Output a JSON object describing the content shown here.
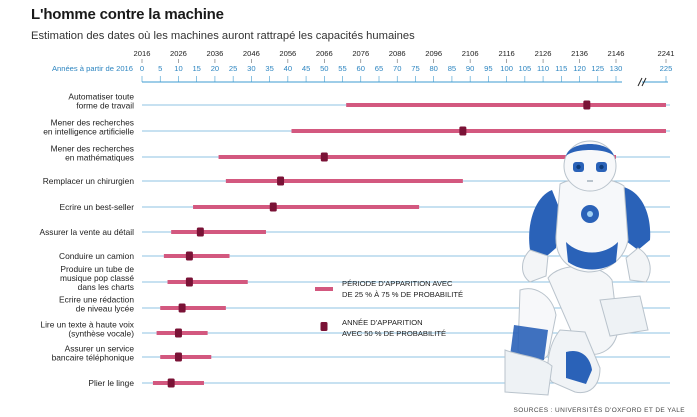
{
  "title": "L'homme contre la machine",
  "subtitle": "Estimation des dates où les machines auront rattrapé les capacités humaines",
  "source": "SOURCES : UNIVERSITÉS D'OXFORD ET DE YALE",
  "colors": {
    "range": "#d3587f",
    "median": "#7a1236",
    "axis": "#3c9bd0",
    "axis_text": "#2e86c1",
    "gridline": "#8fc3e3"
  },
  "chart_data": {
    "type": "range-dot",
    "x_axis_top_label": "",
    "x_axis_years_label": "Années à partir de 2016",
    "years_ticks": [
      2016,
      2026,
      2036,
      2046,
      2056,
      2066,
      2076,
      2086,
      2096,
      2106,
      2116,
      2126,
      2136,
      2146,
      2241
    ],
    "offset_ticks": [
      0,
      5,
      10,
      15,
      20,
      25,
      30,
      35,
      40,
      45,
      50,
      55,
      60,
      65,
      70,
      75,
      80,
      85,
      90,
      95,
      100,
      105,
      110,
      115,
      120,
      125,
      130,
      225
    ],
    "axis_break_between": [
      130,
      225
    ],
    "tasks": [
      {
        "label": "Automatiser toute forme de travail",
        "lines": [
          "Automatiser toute",
          "forme de travail"
        ],
        "p25": 56,
        "p75": 225,
        "p50": 122
      },
      {
        "label": "Mener des recherches en intelligence artificielle",
        "lines": [
          "Mener des recherches",
          "en intelligence artificielle"
        ],
        "p25": 41,
        "p75": 225,
        "p50": 88
      },
      {
        "label": "Mener des recherches en mathématiques",
        "lines": [
          "Mener des recherches",
          "en mathématiques"
        ],
        "p25": 21,
        "p75": 130,
        "p50": 50
      },
      {
        "label": "Remplacer un chirurgien",
        "lines": [
          "Remplacer un chirurgien"
        ],
        "p25": 23,
        "p75": 88,
        "p50": 38
      },
      {
        "label": "Ecrire un best-seller",
        "lines": [
          "Ecrire un best-seller"
        ],
        "p25": 14,
        "p75": 76,
        "p50": 36
      },
      {
        "label": "Assurer la vente au détail",
        "lines": [
          "Assurer la vente au détail"
        ],
        "p25": 8,
        "p75": 34,
        "p50": 16
      },
      {
        "label": "Conduire un camion",
        "lines": [
          "Conduire un camion"
        ],
        "p25": 6,
        "p75": 24,
        "p50": 13
      },
      {
        "label": "Produire un tube de musique pop classé dans les charts",
        "lines": [
          "Produire un tube de",
          "musique pop classé",
          "dans les charts"
        ],
        "p25": 7,
        "p75": 29,
        "p50": 13
      },
      {
        "label": "Ecrire une rédaction de niveau lycée",
        "lines": [
          "Ecrire une rédaction",
          "de niveau lycée"
        ],
        "p25": 5,
        "p75": 23,
        "p50": 11
      },
      {
        "label": "Lire un texte à haute voix (synthèse vocale)",
        "lines": [
          "Lire un texte à haute voix",
          "(synthèse vocale)"
        ],
        "p25": 4,
        "p75": 18,
        "p50": 10
      },
      {
        "label": "Assurer un service bancaire téléphonique",
        "lines": [
          "Assurer un service",
          "bancaire téléphonique"
        ],
        "p25": 5,
        "p75": 19,
        "p50": 10
      },
      {
        "label": "Plier le linge",
        "lines": [
          "Plier le linge"
        ],
        "p25": 3,
        "p75": 17,
        "p50": 8
      }
    ],
    "legend": {
      "range_lines": [
        "PÉRIODE D'APPARITION AVEC",
        "DE 25 % À 75 % DE PROBABILITÉ"
      ],
      "median_lines": [
        "ANNÉE D'APPARITION",
        "AVEC 50 % DE PROBABILITÉ"
      ]
    }
  }
}
